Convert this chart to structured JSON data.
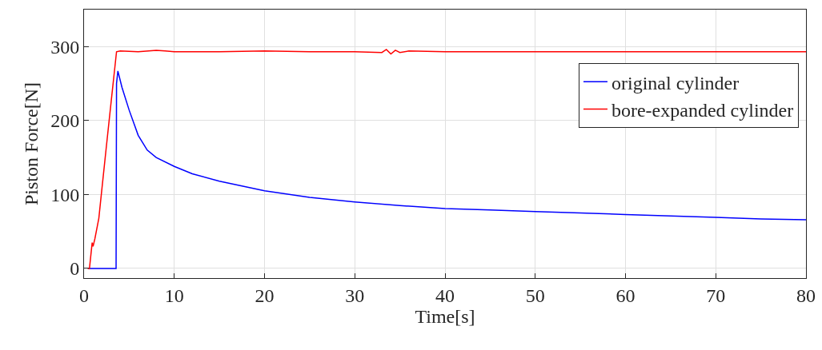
{
  "chart_data": {
    "type": "line",
    "xlabel": "Time[s]",
    "ylabel": "Piston Force[N]",
    "xlim": [
      0,
      80
    ],
    "ylim": [
      -13,
      350
    ],
    "xticks": [
      0,
      10,
      20,
      30,
      40,
      50,
      60,
      70,
      80
    ],
    "yticks": [
      0,
      100,
      200,
      300
    ],
    "grid": true,
    "legend": "top right",
    "line_style": "solid",
    "marker": "none",
    "series": [
      {
        "name": "original cylinder",
        "color": "#0000ff",
        "x": [
          0.5,
          3.55,
          3.6,
          3.75,
          4.2,
          5,
          6,
          7,
          8,
          10,
          12,
          15,
          20,
          25,
          30,
          35,
          40,
          45,
          50,
          55,
          60,
          65,
          70,
          75,
          80
        ],
        "values": [
          0,
          0,
          250,
          267,
          245,
          214,
          180,
          160,
          150,
          138,
          128,
          118,
          105,
          96,
          90,
          85,
          81,
          79,
          77,
          75,
          73,
          71,
          69,
          67,
          66
        ]
      },
      {
        "name": "bore-expanded cylinder",
        "color": "#ff0000",
        "x": [
          0.4,
          0.6,
          0.9,
          1.0,
          1.2,
          1.64,
          2.0,
          2.5,
          3.0,
          3.6,
          4,
          6,
          8,
          9,
          10,
          15,
          20,
          25,
          30,
          33,
          33.5,
          34,
          34.5,
          35,
          36,
          40,
          45,
          50,
          60,
          70,
          80
        ],
        "values": [
          0,
          0,
          35,
          30,
          40,
          68,
          110,
          168,
          225,
          293,
          294,
          293,
          295,
          294,
          293,
          293,
          294,
          293,
          293,
          292,
          296,
          290,
          295,
          292,
          294,
          293,
          293,
          293,
          293,
          293,
          293
        ]
      }
    ]
  }
}
